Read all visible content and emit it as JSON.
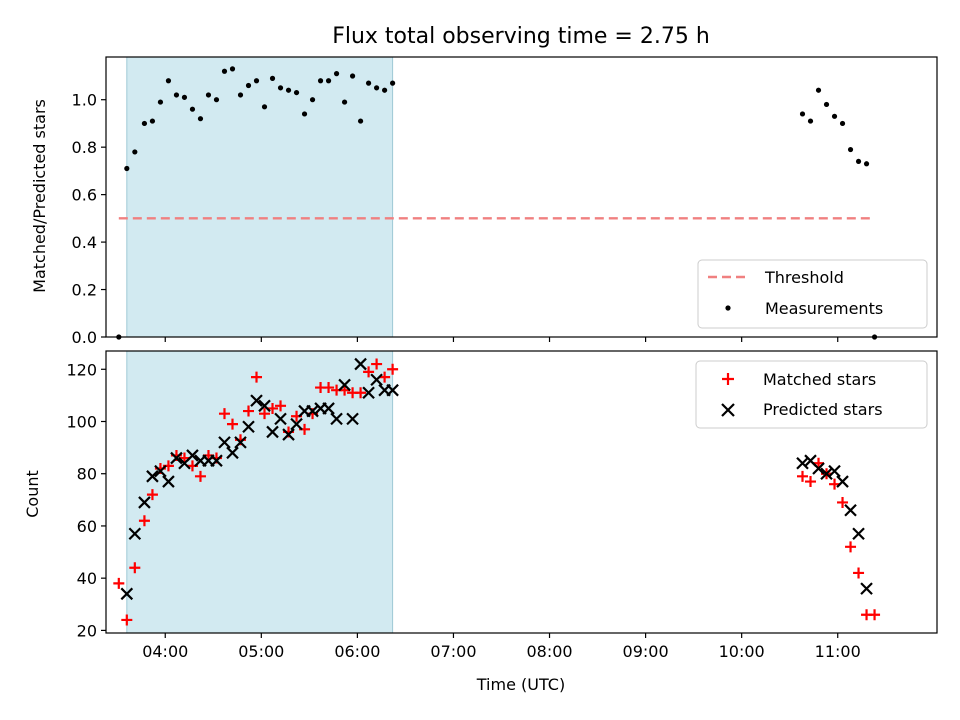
{
  "chart_data": [
    {
      "type": "scatter",
      "title": "Flux total observing time = 2.75 h",
      "ylabel": "Matched/Predicted stars",
      "xlabel": "",
      "xlim": [
        "03:23",
        "12:02"
      ],
      "ylim": [
        0,
        1.18
      ],
      "yticks": [
        "0.0",
        "0.2",
        "0.4",
        "0.6",
        "0.8",
        "1.0"
      ],
      "shaded_span": [
        "03:36",
        "06:22"
      ],
      "legend_position": "lower-right",
      "threshold": {
        "name": "Threshold",
        "y": 0.5,
        "x": [
          "03:31",
          "11:22"
        ],
        "color": "#f08080"
      },
      "series": [
        {
          "name": "Measurements",
          "color": "#000000",
          "points": [
            [
              "03:31",
              0.0
            ],
            [
              "03:36",
              0.71
            ],
            [
              "03:41",
              0.78
            ],
            [
              "03:47",
              0.9
            ],
            [
              "03:52",
              0.91
            ],
            [
              "03:57",
              0.99
            ],
            [
              "04:02",
              1.08
            ],
            [
              "04:07",
              1.02
            ],
            [
              "04:12",
              1.01
            ],
            [
              "04:17",
              0.96
            ],
            [
              "04:22",
              0.92
            ],
            [
              "04:27",
              1.02
            ],
            [
              "04:32",
              1.0
            ],
            [
              "04:37",
              1.12
            ],
            [
              "04:42",
              1.13
            ],
            [
              "04:47",
              1.02
            ],
            [
              "04:52",
              1.06
            ],
            [
              "04:57",
              1.08
            ],
            [
              "05:02",
              0.97
            ],
            [
              "05:07",
              1.09
            ],
            [
              "05:12",
              1.05
            ],
            [
              "05:17",
              1.04
            ],
            [
              "05:22",
              1.03
            ],
            [
              "05:27",
              0.94
            ],
            [
              "05:32",
              1.0
            ],
            [
              "05:37",
              1.08
            ],
            [
              "05:42",
              1.08
            ],
            [
              "05:47",
              1.11
            ],
            [
              "05:52",
              0.99
            ],
            [
              "05:57",
              1.1
            ],
            [
              "06:02",
              0.91
            ],
            [
              "06:07",
              1.07
            ],
            [
              "06:12",
              1.05
            ],
            [
              "06:17",
              1.04
            ],
            [
              "06:22",
              1.07
            ],
            [
              "10:38",
              0.94
            ],
            [
              "10:43",
              0.91
            ],
            [
              "10:48",
              1.04
            ],
            [
              "10:53",
              0.98
            ],
            [
              "10:58",
              0.93
            ],
            [
              "11:03",
              0.9
            ],
            [
              "11:08",
              0.79
            ],
            [
              "11:13",
              0.74
            ],
            [
              "11:18",
              0.73
            ],
            [
              "11:23",
              0.0
            ]
          ]
        }
      ]
    },
    {
      "type": "scatter",
      "title": "",
      "xlabel": "Time (UTC)",
      "ylabel": "Count",
      "xlim": [
        "03:23",
        "12:02"
      ],
      "ylim": [
        19,
        127
      ],
      "yticks": [
        "20",
        "40",
        "60",
        "80",
        "100",
        "120"
      ],
      "xticks": [
        "04:00",
        "05:00",
        "06:00",
        "07:00",
        "08:00",
        "09:00",
        "10:00",
        "11:00"
      ],
      "shaded_span": [
        "03:36",
        "06:22"
      ],
      "legend_position": "upper-right",
      "series": [
        {
          "name": "Matched stars",
          "marker": "+",
          "color": "#ff0000",
          "points": [
            [
              "03:31",
              38
            ],
            [
              "03:36",
              24
            ],
            [
              "03:41",
              44
            ],
            [
              "03:47",
              62
            ],
            [
              "03:52",
              72
            ],
            [
              "03:57",
              82
            ],
            [
              "04:02",
              83
            ],
            [
              "04:07",
              87
            ],
            [
              "04:12",
              86
            ],
            [
              "04:17",
              83
            ],
            [
              "04:22",
              79
            ],
            [
              "04:27",
              87
            ],
            [
              "04:32",
              86
            ],
            [
              "04:37",
              103
            ],
            [
              "04:42",
              99
            ],
            [
              "04:47",
              93
            ],
            [
              "04:52",
              104
            ],
            [
              "04:57",
              117
            ],
            [
              "05:02",
              103
            ],
            [
              "05:07",
              105
            ],
            [
              "05:12",
              106
            ],
            [
              "05:17",
              96
            ],
            [
              "05:22",
              102
            ],
            [
              "05:27",
              97
            ],
            [
              "05:32",
              103
            ],
            [
              "05:37",
              113
            ],
            [
              "05:42",
              113
            ],
            [
              "05:47",
              112
            ],
            [
              "05:52",
              112
            ],
            [
              "05:57",
              111
            ],
            [
              "06:02",
              111
            ],
            [
              "06:07",
              119
            ],
            [
              "06:12",
              122
            ],
            [
              "06:17",
              117
            ],
            [
              "06:22",
              120
            ],
            [
              "10:38",
              79
            ],
            [
              "10:43",
              77
            ],
            [
              "10:48",
              84
            ],
            [
              "10:53",
              80
            ],
            [
              "10:58",
              76
            ],
            [
              "11:03",
              69
            ],
            [
              "11:08",
              52
            ],
            [
              "11:13",
              42
            ],
            [
              "11:18",
              26
            ],
            [
              "11:23",
              26
            ]
          ]
        },
        {
          "name": "Predicted stars",
          "marker": "x",
          "color": "#000000",
          "points": [
            [
              "03:36",
              34
            ],
            [
              "03:41",
              57
            ],
            [
              "03:47",
              69
            ],
            [
              "03:52",
              79
            ],
            [
              "03:57",
              81
            ],
            [
              "04:02",
              77
            ],
            [
              "04:07",
              86
            ],
            [
              "04:12",
              84
            ],
            [
              "04:17",
              87
            ],
            [
              "04:22",
              85
            ],
            [
              "04:27",
              85
            ],
            [
              "04:32",
              85
            ],
            [
              "04:37",
              92
            ],
            [
              "04:42",
              88
            ],
            [
              "04:47",
              92
            ],
            [
              "04:52",
              98
            ],
            [
              "04:57",
              108
            ],
            [
              "05:02",
              106
            ],
            [
              "05:07",
              96
            ],
            [
              "05:12",
              101
            ],
            [
              "05:17",
              95
            ],
            [
              "05:22",
              99
            ],
            [
              "05:27",
              104
            ],
            [
              "05:32",
              104
            ],
            [
              "05:37",
              105
            ],
            [
              "05:42",
              105
            ],
            [
              "05:47",
              101
            ],
            [
              "05:52",
              114
            ],
            [
              "05:57",
              101
            ],
            [
              "06:02",
              122
            ],
            [
              "06:07",
              111
            ],
            [
              "06:12",
              116
            ],
            [
              "06:17",
              112
            ],
            [
              "06:22",
              112
            ],
            [
              "10:38",
              84
            ],
            [
              "10:43",
              85
            ],
            [
              "10:48",
              82
            ],
            [
              "10:53",
              80
            ],
            [
              "10:58",
              81
            ],
            [
              "11:03",
              77
            ],
            [
              "11:08",
              66
            ],
            [
              "11:13",
              57
            ],
            [
              "11:18",
              36
            ]
          ]
        }
      ]
    }
  ]
}
